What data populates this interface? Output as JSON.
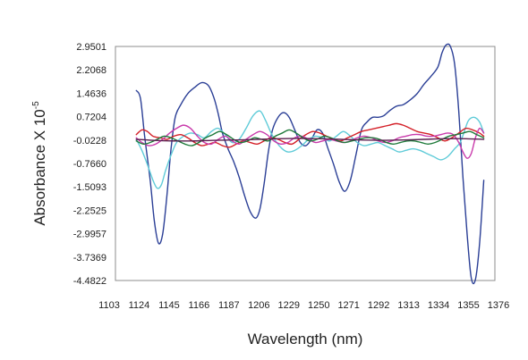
{
  "chart_data": {
    "type": "line",
    "xlabel": "Wavelength (nm)",
    "ylabel_main": "Absorbance X 10",
    "ylabel_exponent": "-5",
    "xlim": [
      1103,
      1376
    ],
    "ylim": [
      -4.4822,
      2.9501
    ],
    "x_tick_labels": [
      "1103",
      "1124",
      "1145",
      "1166",
      "1187",
      "1206",
      "1229",
      "1250",
      "1271",
      "1292",
      "1313",
      "1334",
      "1355",
      "1376"
    ],
    "y_tick_labels": [
      "2.9501",
      "2.2068",
      "1.4636",
      "0.7204",
      "-0.0228",
      "-0.7660",
      "-1.5093",
      "-2.2525",
      "-2.9957",
      "-3.7369",
      "-4.4822"
    ],
    "grid": false,
    "legend": "none",
    "series": [
      {
        "color": "#2b3f96",
        "x": [
          1118,
          1121,
          1124,
          1128,
          1131,
          1134,
          1137,
          1140,
          1143,
          1146,
          1150,
          1155,
          1160,
          1165,
          1170,
          1174,
          1177,
          1180,
          1184,
          1188,
          1192,
          1196,
          1200,
          1204,
          1207,
          1210,
          1213,
          1216,
          1220,
          1224,
          1228,
          1232,
          1236,
          1240,
          1244,
          1248,
          1252,
          1256,
          1260,
          1264,
          1268,
          1272,
          1276,
          1280,
          1284,
          1288,
          1292,
          1296,
          1300,
          1305,
          1310,
          1315,
          1320,
          1325,
          1330,
          1335,
          1338,
          1341,
          1344,
          1347,
          1350,
          1353,
          1356,
          1359,
          1362,
          1365,
          1368
        ],
        "values": [
          1.55,
          1.3,
          0.1,
          -1.3,
          -2.6,
          -3.3,
          -3.0,
          -1.8,
          -0.3,
          0.7,
          1.1,
          1.45,
          1.65,
          1.8,
          1.7,
          1.3,
          0.8,
          0.2,
          -0.3,
          -0.7,
          -1.2,
          -1.8,
          -2.3,
          -2.5,
          -2.2,
          -1.4,
          -0.4,
          0.3,
          0.7,
          0.85,
          0.7,
          0.3,
          -0.1,
          -0.2,
          0.0,
          0.3,
          0.2,
          -0.3,
          -0.8,
          -1.35,
          -1.65,
          -1.3,
          -0.5,
          0.3,
          0.55,
          0.7,
          0.7,
          0.75,
          0.9,
          1.05,
          1.1,
          1.25,
          1.45,
          1.75,
          2.0,
          2.3,
          2.75,
          3.0,
          2.95,
          2.4,
          0.9,
          -1.2,
          -3.0,
          -4.4,
          -4.45,
          -3.3,
          -1.3
        ]
      },
      {
        "color": "#5fcbd8",
        "x": [
          1118,
          1122,
          1126,
          1130,
          1133,
          1136,
          1139,
          1143,
          1147,
          1152,
          1157,
          1162,
          1167,
          1172,
          1177,
          1182,
          1187,
          1192,
          1197,
          1202,
          1207,
          1211,
          1215,
          1219,
          1223,
          1227,
          1232,
          1237,
          1242,
          1247,
          1252,
          1257,
          1262,
          1267,
          1272,
          1277,
          1282,
          1287,
          1292,
          1297,
          1302,
          1307,
          1312,
          1317,
          1322,
          1327,
          1332,
          1337,
          1342,
          1347,
          1351,
          1354,
          1357,
          1361,
          1365,
          1368
        ],
        "values": [
          0.0,
          -0.35,
          -0.8,
          -1.3,
          -1.55,
          -1.45,
          -1.0,
          -0.5,
          -0.1,
          0.1,
          0.2,
          0.15,
          0.05,
          0.25,
          0.35,
          0.15,
          -0.1,
          0.0,
          0.35,
          0.75,
          0.9,
          0.6,
          0.2,
          -0.1,
          -0.3,
          -0.4,
          -0.35,
          -0.2,
          0.0,
          0.1,
          0.05,
          -0.05,
          0.1,
          0.25,
          0.1,
          -0.1,
          -0.2,
          -0.15,
          -0.1,
          -0.2,
          -0.3,
          -0.4,
          -0.35,
          -0.3,
          -0.35,
          -0.45,
          -0.55,
          -0.65,
          -0.55,
          -0.3,
          -0.1,
          0.25,
          0.6,
          0.7,
          0.55,
          0.2
        ]
      },
      {
        "color": "#d42028",
        "x": [
          1118,
          1122,
          1126,
          1130,
          1135,
          1140,
          1145,
          1150,
          1155,
          1160,
          1165,
          1170,
          1175,
          1180,
          1185,
          1190,
          1195,
          1200,
          1205,
          1210,
          1215,
          1220,
          1225,
          1230,
          1235,
          1240,
          1245,
          1250,
          1255,
          1260,
          1265,
          1270,
          1275,
          1280,
          1285,
          1290,
          1295,
          1300,
          1305,
          1310,
          1315,
          1320,
          1325,
          1330,
          1335,
          1340,
          1345,
          1350,
          1355,
          1360,
          1365,
          1368
        ],
        "values": [
          0.15,
          0.3,
          0.25,
          0.1,
          0.05,
          0.0,
          0.1,
          0.15,
          0.05,
          -0.1,
          -0.2,
          -0.15,
          -0.1,
          -0.2,
          -0.25,
          -0.15,
          -0.05,
          -0.1,
          -0.15,
          -0.05,
          0.05,
          0.0,
          -0.1,
          -0.15,
          0.0,
          0.15,
          0.25,
          0.2,
          0.1,
          0.0,
          -0.05,
          0.05,
          0.15,
          0.25,
          0.3,
          0.35,
          0.4,
          0.45,
          0.5,
          0.45,
          0.35,
          0.25,
          0.2,
          0.15,
          0.05,
          -0.05,
          0.05,
          0.2,
          0.35,
          0.3,
          0.2,
          0.1
        ]
      },
      {
        "color": "#c93aab",
        "x": [
          1118,
          1122,
          1127,
          1132,
          1137,
          1142,
          1147,
          1152,
          1157,
          1162,
          1167,
          1172,
          1177,
          1182,
          1187,
          1192,
          1197,
          1202,
          1207,
          1212,
          1217,
          1222,
          1227,
          1232,
          1237,
          1242,
          1247,
          1252,
          1257,
          1262,
          1267,
          1272,
          1277,
          1282,
          1287,
          1292,
          1297,
          1302,
          1307,
          1312,
          1317,
          1322,
          1327,
          1332,
          1337,
          1342,
          1346,
          1350,
          1353,
          1356,
          1359,
          1362,
          1365,
          1368
        ],
        "values": [
          0.05,
          -0.1,
          -0.2,
          -0.15,
          0.0,
          0.2,
          0.35,
          0.45,
          0.35,
          0.1,
          -0.1,
          -0.15,
          0.0,
          0.1,
          -0.05,
          -0.15,
          0.0,
          0.15,
          0.25,
          0.15,
          -0.05,
          -0.15,
          -0.1,
          0.05,
          0.1,
          0.0,
          -0.1,
          -0.05,
          0.0,
          -0.05,
          -0.1,
          -0.05,
          0.05,
          0.1,
          0.05,
          -0.05,
          -0.1,
          -0.05,
          0.05,
          0.1,
          0.15,
          0.15,
          0.1,
          0.1,
          0.15,
          0.2,
          0.15,
          -0.1,
          -0.4,
          -0.6,
          -0.45,
          0.05,
          0.35,
          0.2
        ]
      },
      {
        "color": "#1e7a3a",
        "x": [
          1118,
          1123,
          1128,
          1133,
          1138,
          1143,
          1148,
          1153,
          1158,
          1163,
          1168,
          1173,
          1178,
          1183,
          1188,
          1193,
          1198,
          1203,
          1208,
          1213,
          1218,
          1223,
          1228,
          1233,
          1238,
          1243,
          1248,
          1253,
          1258,
          1263,
          1268,
          1273,
          1278,
          1283,
          1288,
          1293,
          1298,
          1303,
          1308,
          1313,
          1318,
          1323,
          1328,
          1333,
          1338,
          1343,
          1348,
          1353,
          1358,
          1363,
          1368
        ],
        "values": [
          -0.05,
          -0.15,
          -0.1,
          0.0,
          0.1,
          0.05,
          -0.05,
          -0.15,
          -0.2,
          -0.1,
          0.05,
          0.15,
          0.25,
          0.15,
          0.0,
          -0.1,
          -0.05,
          0.05,
          0.0,
          -0.05,
          0.1,
          0.2,
          0.3,
          0.2,
          0.05,
          -0.05,
          0.0,
          0.1,
          0.05,
          -0.05,
          -0.1,
          -0.05,
          0.0,
          0.05,
          0.05,
          0.0,
          -0.1,
          -0.15,
          -0.1,
          -0.05,
          -0.05,
          -0.1,
          -0.15,
          -0.1,
          0.0,
          0.1,
          0.15,
          0.2,
          0.25,
          0.15,
          0.05
        ]
      },
      {
        "color": "#5a1f4f",
        "x": [
          1118,
          1130,
          1145,
          1160,
          1175,
          1190,
          1205,
          1220,
          1235,
          1250,
          1265,
          1280,
          1295,
          1310,
          1325,
          1340,
          1355,
          1368
        ],
        "values": [
          0.0,
          -0.03,
          -0.05,
          -0.05,
          -0.03,
          -0.02,
          0.0,
          0.02,
          0.03,
          0.02,
          0.0,
          -0.02,
          -0.03,
          -0.02,
          0.0,
          0.02,
          0.02,
          0.0
        ]
      }
    ]
  }
}
